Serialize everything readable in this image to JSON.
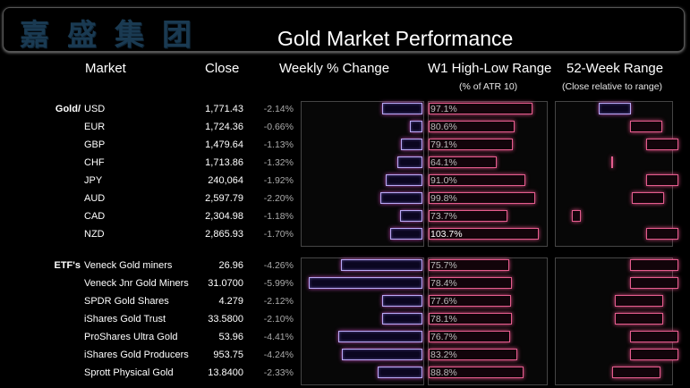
{
  "banner": {
    "logo_text": "嘉盛集团",
    "title": "Gold Market Performance"
  },
  "headers": {
    "market": "Market",
    "close": "Close",
    "weekly": "Weekly % Change",
    "range": "W1 High-Low Range",
    "range_sub": "(% of ATR 10)",
    "week52": "52-Week Range",
    "week52_sub": "(Close relative to range)"
  },
  "chart_data": {
    "type": "table",
    "title": "Gold Market Performance",
    "columns": [
      "Market",
      "Close",
      "Weekly % Change",
      "W1 High-Low Range (% of ATR 10)",
      "52-Week Range (Close relative to range)"
    ],
    "groups": [
      {
        "label": "Gold/",
        "rows": [
          {
            "name": "USD",
            "close": "1,771.43",
            "weekly": "-2.14%",
            "weekly_value": -2.14,
            "range": "97.1%",
            "range_value": 97.1,
            "pos52": 0.17,
            "pos52_style": "bar"
          },
          {
            "name": "EUR",
            "close": "1,724.36",
            "weekly": "-0.66%",
            "weekly_value": -0.66,
            "range": "80.6%",
            "range_value": 80.6,
            "pos52": 0.53,
            "pos52_style": "bar"
          },
          {
            "name": "GBP",
            "close": "1,479.64",
            "weekly": "-1.13%",
            "weekly_value": -1.13,
            "range": "79.1%",
            "range_value": 79.1,
            "pos52": 0.83,
            "pos52_style": "bar"
          },
          {
            "name": "CHF",
            "close": "1,713.86",
            "weekly": "-1.32%",
            "weekly_value": -1.32,
            "range": "64.1%",
            "range_value": 64.1,
            "pos52": 0.02,
            "pos52_style": "tick"
          },
          {
            "name": "JPY",
            "close": "240,064",
            "weekly": "-1.92%",
            "weekly_value": -1.92,
            "range": "91.0%",
            "range_value": 91.0,
            "pos52": 0.82,
            "pos52_style": "bar"
          },
          {
            "name": "AUD",
            "close": "2,597.79",
            "weekly": "-2.20%",
            "weekly_value": -2.2,
            "range": "99.8%",
            "range_value": 99.8,
            "pos52": 0.55,
            "pos52_style": "bar"
          },
          {
            "name": "CAD",
            "close": "2,304.98",
            "weekly": "-1.18%",
            "weekly_value": -1.18,
            "range": "73.7%",
            "range_value": 73.7,
            "pos52": -0.15,
            "pos52_style": "bar"
          },
          {
            "name": "NZD",
            "close": "2,865.93",
            "weekly": "-1.70%",
            "weekly_value": -1.7,
            "range": "103.7%",
            "range_value": 103.7,
            "pos52": 0.95,
            "pos52_style": "bar"
          }
        ]
      },
      {
        "label": "ETF's",
        "rows": [
          {
            "name": "Veneck Gold miners",
            "close": "26.96",
            "weekly": "-4.26%",
            "weekly_value": -4.26,
            "range": "75.7%",
            "range_value": 75.7,
            "pos52": 0.88,
            "pos52_style": "bar"
          },
          {
            "name": "Veneck Jnr Gold Miners",
            "close": "31.0700",
            "weekly": "-5.99%",
            "weekly_value": -5.99,
            "range": "78.4%",
            "range_value": 78.4,
            "pos52": 0.91,
            "pos52_style": "bar"
          },
          {
            "name": "SPDR Gold Shares",
            "close": "4.279",
            "weekly": "-2.12%",
            "weekly_value": -2.12,
            "range": "77.6%",
            "range_value": 77.6,
            "pos52": 0.64,
            "pos52_style": "bar"
          },
          {
            "name": "iShares Gold Trust",
            "close": "33.5800",
            "weekly": "-2.10%",
            "weekly_value": -2.1,
            "range": "78.1%",
            "range_value": 78.1,
            "pos52": 0.64,
            "pos52_style": "bar"
          },
          {
            "name": "ProShares Ultra Gold",
            "close": "53.96",
            "weekly": "-4.41%",
            "weekly_value": -4.41,
            "range": "76.7%",
            "range_value": 76.7,
            "pos52": 0.84,
            "pos52_style": "bar"
          },
          {
            "name": "iShares Gold Producers",
            "close": "953.75",
            "weekly": "-4.24%",
            "weekly_value": -4.24,
            "range": "83.2%",
            "range_value": 83.2,
            "pos52": 0.85,
            "pos52_style": "bar"
          },
          {
            "name": "Sprott Physical Gold",
            "close": "13.8400",
            "weekly": "-2.33%",
            "weekly_value": -2.33,
            "range": "88.8%",
            "range_value": 88.8,
            "pos52": 0.6,
            "pos52_style": "bar"
          }
        ]
      }
    ]
  }
}
